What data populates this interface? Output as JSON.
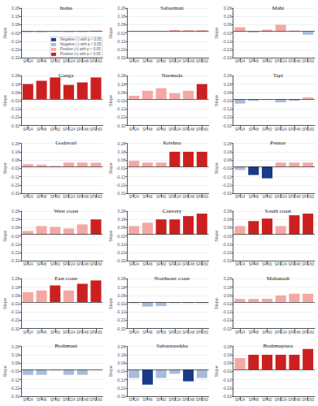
{
  "chart_data": [
    {
      "type": "bar",
      "title": "Indus",
      "categories": [
        "SPI24",
        "SPI48",
        "SPI60",
        "SPEI24",
        "SPEI48",
        "SPEI60"
      ],
      "series": [
        {
          "name": "Negative (-) with p < 0.05",
          "color": "#1a3a8a",
          "values": [
            null,
            null,
            null,
            null,
            null,
            null
          ]
        },
        {
          "name": "Negative (-) with p > 0.05",
          "color": "#a8bcd8",
          "values": [
            -0.008,
            -0.01,
            -0.006,
            -0.008,
            -0.007,
            null
          ]
        },
        {
          "name": "Positive (+) with p > 0.05",
          "color": "#f4a8a4",
          "values": [
            null,
            null,
            null,
            null,
            null,
            0.01
          ]
        },
        {
          "name": "Positive (+) with p < 0.05",
          "color": "#cc2020",
          "values": [
            null,
            null,
            null,
            null,
            null,
            null
          ]
        }
      ],
      "ylabel": "Slope",
      "ylim": [
        -0.32,
        0.28
      ],
      "yticks": [
        -0.32,
        -0.22,
        -0.12,
        -0.02,
        0.08,
        0.18,
        0.28
      ],
      "grid": true,
      "legend": "lower right"
    },
    {
      "type": "bar",
      "title": "Sabarmati",
      "categories": [
        "SPI24",
        "SPI48",
        "SPI60",
        "SPEI24",
        "SPEI48",
        "SPEI60"
      ],
      "values": [
        0.006,
        0.005,
        0.005,
        0.016,
        0.014,
        0.015
      ],
      "colors": [
        "#f4a8a4",
        "#f4a8a4",
        "#f4a8a4",
        "#f4a8a4",
        "#f4a8a4",
        "#f4a8a4"
      ],
      "ylabel": "Slope",
      "ylim": [
        -0.32,
        0.28
      ],
      "yticks": [
        -0.32,
        -0.22,
        -0.12,
        -0.02,
        0.08,
        0.18,
        0.28
      ],
      "grid": true
    },
    {
      "type": "bar",
      "title": "Mahi",
      "categories": [
        "SPI24",
        "SPI48",
        "SPI60",
        "SPEI24",
        "SPEI48",
        "SPEI60"
      ],
      "values": [
        0.05,
        -0.012,
        0.02,
        0.08,
        0.01,
        -0.04
      ],
      "colors": [
        "#f4a8a4",
        "#a8bcd8",
        "#f4a8a4",
        "#f4a8a4",
        "#f4a8a4",
        "#a8bcd8"
      ],
      "ylabel": "Slope",
      "ylim": [
        -0.32,
        0.28
      ],
      "yticks": [
        -0.32,
        -0.22,
        -0.12,
        -0.02,
        0.08,
        0.18,
        0.28
      ],
      "grid": true
    },
    {
      "type": "bar",
      "title": "Ganga",
      "categories": [
        "SPI24",
        "SPI48",
        "SPI60",
        "SPEI24",
        "SPEI48",
        "SPEI60"
      ],
      "values": [
        0.18,
        0.22,
        0.26,
        0.17,
        0.2,
        0.26
      ],
      "colors": [
        "#cc2020",
        "#cc2020",
        "#cc2020",
        "#cc2020",
        "#cc2020",
        "#cc2020"
      ],
      "ylabel": "Slope",
      "ylim": [
        -0.32,
        0.28
      ],
      "yticks": [
        -0.32,
        -0.22,
        -0.12,
        -0.02,
        0.08,
        0.18,
        0.28
      ],
      "grid": true
    },
    {
      "type": "bar",
      "title": "Narmada",
      "categories": [
        "SPI24",
        "SPI48",
        "SPI60",
        "SPEI24",
        "SPEI48",
        "SPEI60"
      ],
      "values": [
        0.04,
        0.1,
        0.13,
        0.07,
        0.1,
        0.18
      ],
      "colors": [
        "#f4a8a4",
        "#f4a8a4",
        "#f4a8a4",
        "#f4a8a4",
        "#f4a8a4",
        "#cc2020"
      ],
      "ylabel": "Slope",
      "ylim": [
        -0.32,
        0.28
      ],
      "yticks": [
        -0.32,
        -0.22,
        -0.12,
        -0.02,
        0.08,
        0.18,
        0.28
      ],
      "grid": true
    },
    {
      "type": "bar",
      "title": "Tapi",
      "categories": [
        "SPI24",
        "SPI48",
        "SPI60",
        "SPEI24",
        "SPEI48",
        "SPEI60"
      ],
      "values": [
        -0.055,
        -0.02,
        -0.008,
        -0.04,
        -0.02,
        0.02
      ],
      "colors": [
        "#a8bcd8",
        "#a8bcd8",
        "#a8bcd8",
        "#a8bcd8",
        "#a8bcd8",
        "#f4a8a4"
      ],
      "ylabel": "Slope",
      "ylim": [
        -0.32,
        0.28
      ],
      "yticks": [
        -0.32,
        -0.22,
        -0.12,
        -0.02,
        0.08,
        0.18,
        0.28
      ],
      "grid": true
    },
    {
      "type": "bar",
      "title": "Godavari",
      "categories": [
        "SPI24",
        "SPI48",
        "SPI60",
        "SPEI24",
        "SPEI48",
        "SPEI60"
      ],
      "values": [
        0.03,
        0.025,
        0.01,
        0.05,
        0.05,
        0.048
      ],
      "colors": [
        "#f4a8a4",
        "#f4a8a4",
        "#f4a8a4",
        "#f4a8a4",
        "#f4a8a4",
        "#f4a8a4"
      ],
      "ylabel": "Slope",
      "ylim": [
        -0.32,
        0.28
      ],
      "yticks": [
        -0.32,
        -0.22,
        -0.12,
        -0.02,
        0.08,
        0.18,
        0.28
      ],
      "grid": true
    },
    {
      "type": "bar",
      "title": "Krishna",
      "categories": [
        "SPI24",
        "SPI48",
        "SPI60",
        "SPEI24",
        "SPEI48",
        "SPEI60"
      ],
      "values": [
        0.07,
        0.05,
        0.05,
        0.18,
        0.18,
        0.18
      ],
      "colors": [
        "#f4a8a4",
        "#f4a8a4",
        "#f4a8a4",
        "#cc2020",
        "#cc2020",
        "#cc2020"
      ],
      "ylabel": "Slope",
      "ylim": [
        -0.32,
        0.28
      ],
      "yticks": [
        -0.32,
        -0.22,
        -0.12,
        -0.02,
        0.08,
        0.18,
        0.28
      ],
      "grid": true
    },
    {
      "type": "bar",
      "title": "Pennar",
      "categories": [
        "SPI24",
        "SPI48",
        "SPI60",
        "SPEI24",
        "SPEI48",
        "SPEI60"
      ],
      "values": [
        -0.04,
        -0.1,
        -0.14,
        0.05,
        0.05,
        0.05
      ],
      "colors": [
        "#a8bcd8",
        "#1a3a8a",
        "#1a3a8a",
        "#f4a8a4",
        "#f4a8a4",
        "#f4a8a4"
      ],
      "ylabel": "Slope",
      "ylim": [
        -0.32,
        0.28
      ],
      "yticks": [
        -0.32,
        -0.22,
        -0.12,
        -0.02,
        0.08,
        0.18,
        0.28
      ],
      "grid": true
    },
    {
      "type": "bar",
      "title": "West coast",
      "categories": [
        "SPI24",
        "SPI48",
        "SPI60",
        "SPEI24",
        "SPEI48",
        "SPEI60"
      ],
      "values": [
        0.04,
        0.1,
        0.09,
        0.07,
        0.12,
        0.18
      ],
      "colors": [
        "#f4a8a4",
        "#f4a8a4",
        "#f4a8a4",
        "#f4a8a4",
        "#f4a8a4",
        "#cc2020"
      ],
      "ylabel": "Slope",
      "ylim": [
        -0.32,
        0.28
      ],
      "yticks": [
        -0.32,
        -0.22,
        -0.12,
        -0.02,
        0.08,
        0.18,
        0.28
      ],
      "grid": true
    },
    {
      "type": "bar",
      "title": "Cauvery",
      "categories": [
        "SPI24",
        "SPI48",
        "SPI60",
        "SPEI24",
        "SPEI48",
        "SPEI60"
      ],
      "values": [
        0.1,
        0.14,
        0.18,
        0.18,
        0.22,
        0.25
      ],
      "colors": [
        "#f4a8a4",
        "#f4a8a4",
        "#cc2020",
        "#cc2020",
        "#cc2020",
        "#cc2020"
      ],
      "ylabel": "Slope",
      "ylim": [
        -0.32,
        0.28
      ],
      "yticks": [
        -0.32,
        -0.22,
        -0.12,
        -0.02,
        0.08,
        0.18,
        0.28
      ],
      "grid": true
    },
    {
      "type": "bar",
      "title": "South coast",
      "categories": [
        "SPI24",
        "SPI48",
        "SPI60",
        "SPEI24",
        "SPEI48",
        "SPEI60"
      ],
      "values": [
        0.1,
        0.16,
        0.19,
        0.1,
        0.23,
        0.25
      ],
      "colors": [
        "#f4a8a4",
        "#cc2020",
        "#cc2020",
        "#f4a8a4",
        "#cc2020",
        "#cc2020"
      ],
      "ylabel": "Slope",
      "ylim": [
        -0.32,
        0.28
      ],
      "yticks": [
        -0.32,
        -0.22,
        -0.12,
        -0.02,
        0.08,
        0.18,
        0.28
      ],
      "grid": true
    },
    {
      "type": "bar",
      "title": "East coast",
      "categories": [
        "SPI24",
        "SPI48",
        "SPI60",
        "SPEI24",
        "SPEI48",
        "SPEI60"
      ],
      "values": [
        0.12,
        0.14,
        0.2,
        0.14,
        0.22,
        0.26
      ],
      "colors": [
        "#f4a8a4",
        "#f4a8a4",
        "#cc2020",
        "#f4a8a4",
        "#cc2020",
        "#cc2020"
      ],
      "ylabel": "Slope",
      "ylim": [
        -0.32,
        0.28
      ],
      "yticks": [
        -0.32,
        -0.22,
        -0.12,
        -0.02,
        0.08,
        0.18,
        0.28
      ],
      "grid": true
    },
    {
      "type": "bar",
      "title": "Northeast coast",
      "categories": [
        "SPI24",
        "SPI48",
        "SPI60",
        "SPEI24",
        "SPEI48",
        "SPEI60"
      ],
      "values": [
        -0.012,
        -0.055,
        -0.048,
        -0.012,
        -0.012,
        -0.012
      ],
      "colors": [
        "#a8bcd8",
        "#a8bcd8",
        "#a8bcd8",
        "#a8bcd8",
        "#a8bcd8",
        "#a8bcd8"
      ],
      "ylabel": "Slope",
      "ylim": [
        -0.32,
        0.28
      ],
      "yticks": [
        -0.32,
        -0.22,
        -0.12,
        -0.02,
        0.08,
        0.18,
        0.28
      ],
      "grid": true
    },
    {
      "type": "bar",
      "title": "Mahanadi",
      "categories": [
        "SPI24",
        "SPI48",
        "SPI60",
        "SPEI24",
        "SPEI48",
        "SPEI60"
      ],
      "values": [
        0.038,
        0.038,
        0.04,
        0.08,
        0.1,
        0.1
      ],
      "colors": [
        "#f4a8a4",
        "#f4a8a4",
        "#f4a8a4",
        "#f4a8a4",
        "#f4a8a4",
        "#f4a8a4"
      ],
      "ylabel": "Slope",
      "ylim": [
        -0.32,
        0.28
      ],
      "yticks": [
        -0.32,
        -0.22,
        -0.12,
        -0.02,
        0.08,
        0.18,
        0.28
      ],
      "grid": true
    },
    {
      "type": "bar",
      "title": "Brahmani",
      "categories": [
        "SPI24",
        "SPI48",
        "SPI60",
        "SPEI24",
        "SPEI48",
        "SPEI60"
      ],
      "values": [
        -0.062,
        -0.062,
        -0.008,
        -0.062,
        -0.062,
        0.005
      ],
      "colors": [
        "#a8bcd8",
        "#a8bcd8",
        "#a8bcd8",
        "#a8bcd8",
        "#a8bcd8",
        "#f4a8a4"
      ],
      "ylabel": "Slope",
      "ylim": [
        -0.32,
        0.28
      ],
      "yticks": [
        -0.32,
        -0.22,
        -0.12,
        -0.02,
        0.08,
        0.18,
        0.28
      ],
      "grid": true
    },
    {
      "type": "bar",
      "title": "Subarnarekha",
      "categories": [
        "SPI24",
        "SPI48",
        "SPI60",
        "SPEI24",
        "SPEI48",
        "SPEI60"
      ],
      "values": [
        -0.1,
        -0.18,
        -0.1,
        -0.05,
        -0.14,
        -0.1
      ],
      "colors": [
        "#a8bcd8",
        "#1a3a8a",
        "#a8bcd8",
        "#a8bcd8",
        "#1a3a8a",
        "#a8bcd8"
      ],
      "ylabel": "Slope",
      "ylim": [
        -0.32,
        0.28
      ],
      "yticks": [
        -0.32,
        -0.22,
        -0.12,
        -0.02,
        0.08,
        0.18,
        0.28
      ],
      "grid": true
    },
    {
      "type": "bar",
      "title": "Brahmaptura",
      "categories": [
        "SPI24",
        "SPI48",
        "SPI60",
        "SPEI24",
        "SPEI48",
        "SPEI60"
      ],
      "values": [
        0.14,
        0.18,
        0.18,
        0.18,
        0.18,
        0.25
      ],
      "colors": [
        "#f4a8a4",
        "#cc2020",
        "#cc2020",
        "#cc2020",
        "#cc2020",
        "#cc2020"
      ],
      "ylabel": "Slope",
      "ylim": [
        -0.32,
        0.28
      ],
      "yticks": [
        -0.32,
        -0.22,
        -0.12,
        -0.02,
        0.08,
        0.18,
        0.28
      ],
      "grid": true
    }
  ]
}
